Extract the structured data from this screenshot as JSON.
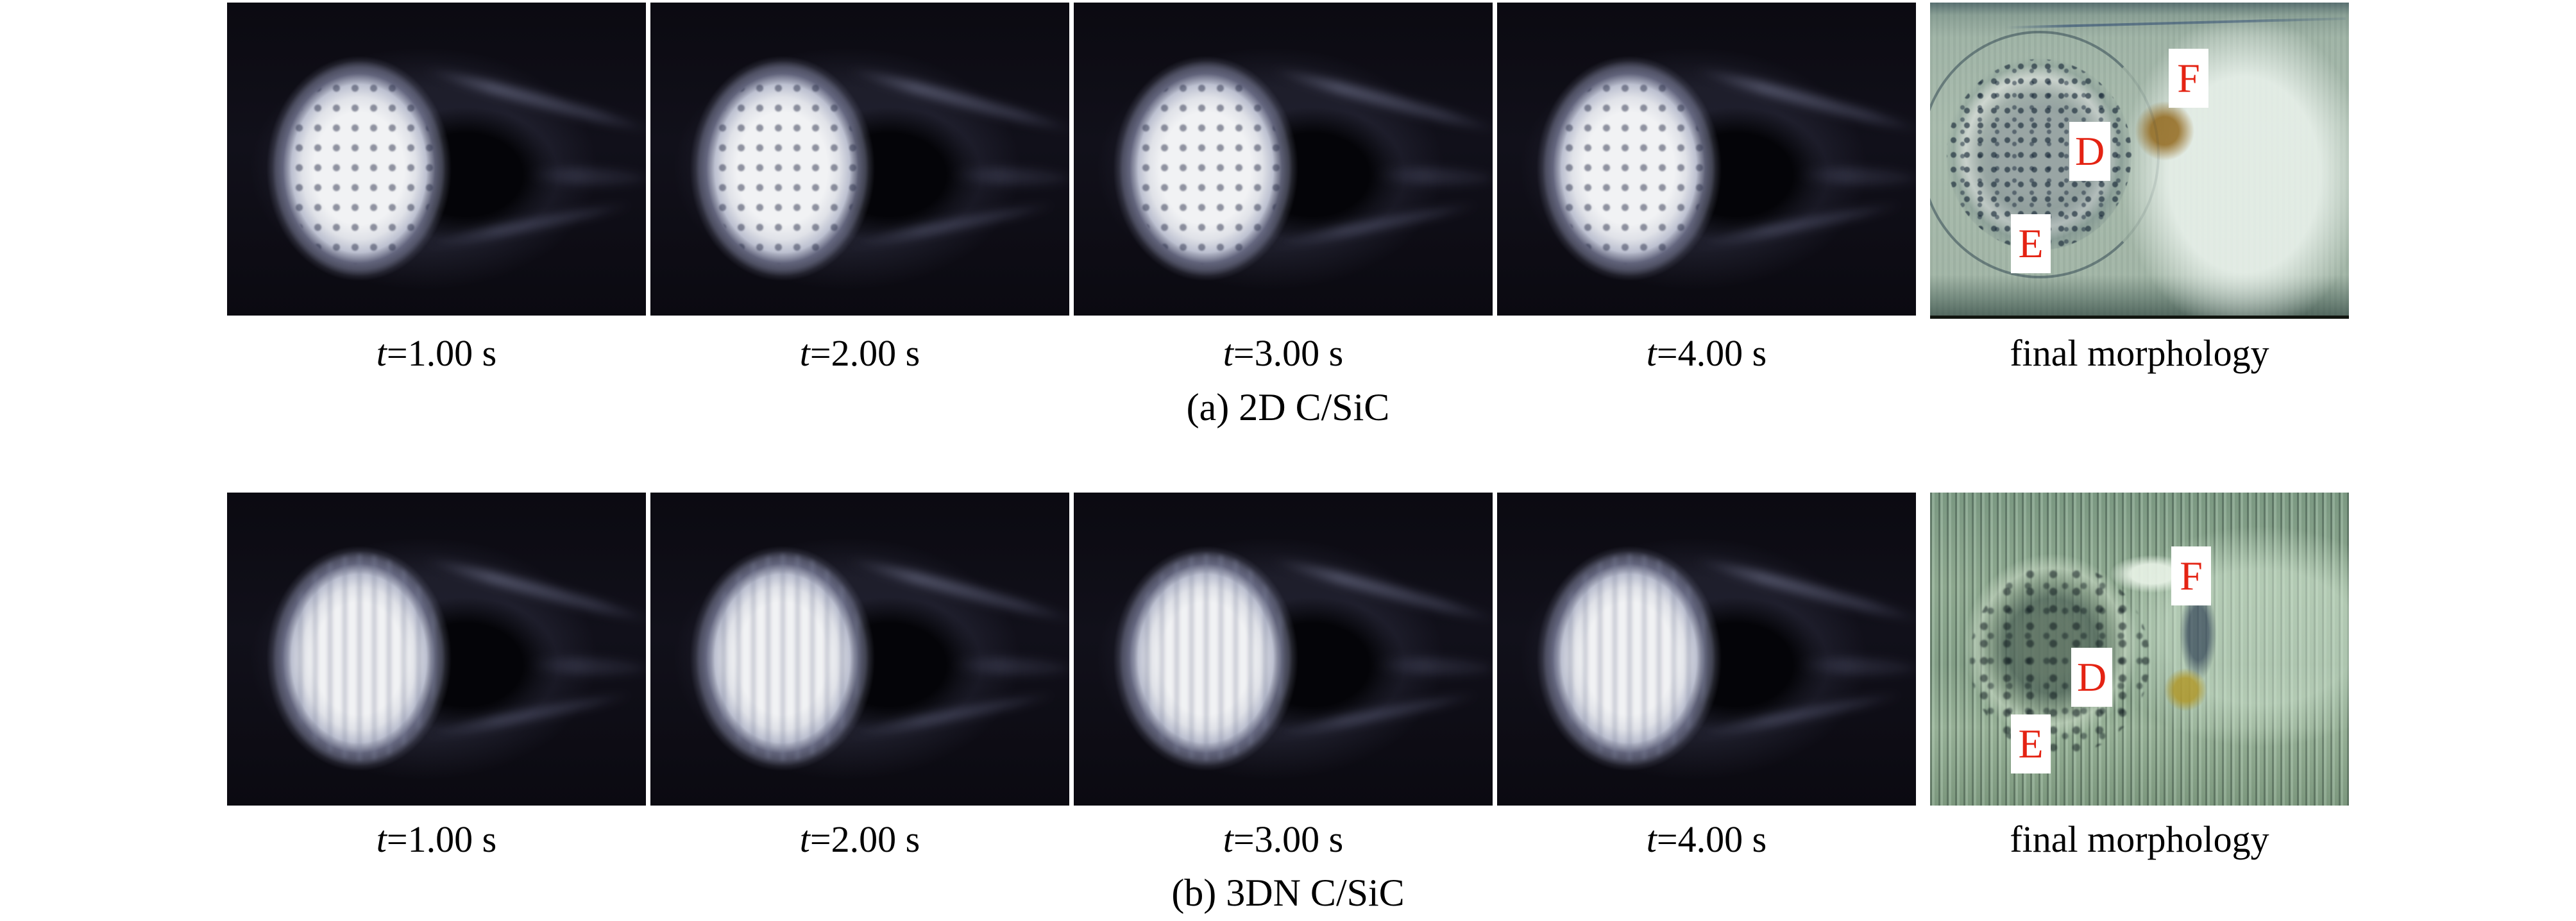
{
  "colors": {
    "label_red": "#e42313",
    "page_background": "#ffffff",
    "frame_background": "#0d0c13",
    "morphology_a_tone": "#a7b9ab",
    "morphology_b_tone": "#8aa58e"
  },
  "panels": [
    {
      "id": "a",
      "subcaption": "(a) 2D C/SiC",
      "frames": [
        {
          "t": "t",
          "rest": "=1.00 s"
        },
        {
          "t": "t",
          "rest": "=2.00 s"
        },
        {
          "t": "t",
          "rest": "=3.00 s"
        },
        {
          "t": "t",
          "rest": "=4.00 s"
        }
      ],
      "morphology": {
        "caption": "final morphology",
        "labels": {
          "top_right": "F",
          "center": "D",
          "bottom_left": "E"
        }
      }
    },
    {
      "id": "b",
      "subcaption": "(b) 3DN C/SiC",
      "frames": [
        {
          "t": "t",
          "rest": "=1.00 s"
        },
        {
          "t": "t",
          "rest": "=2.00 s"
        },
        {
          "t": "t",
          "rest": "=3.00 s"
        },
        {
          "t": "t",
          "rest": "=4.00 s"
        }
      ],
      "morphology": {
        "caption": "final morphology",
        "labels": {
          "top_right": "F",
          "center": "D",
          "bottom_left": "E"
        }
      }
    }
  ]
}
